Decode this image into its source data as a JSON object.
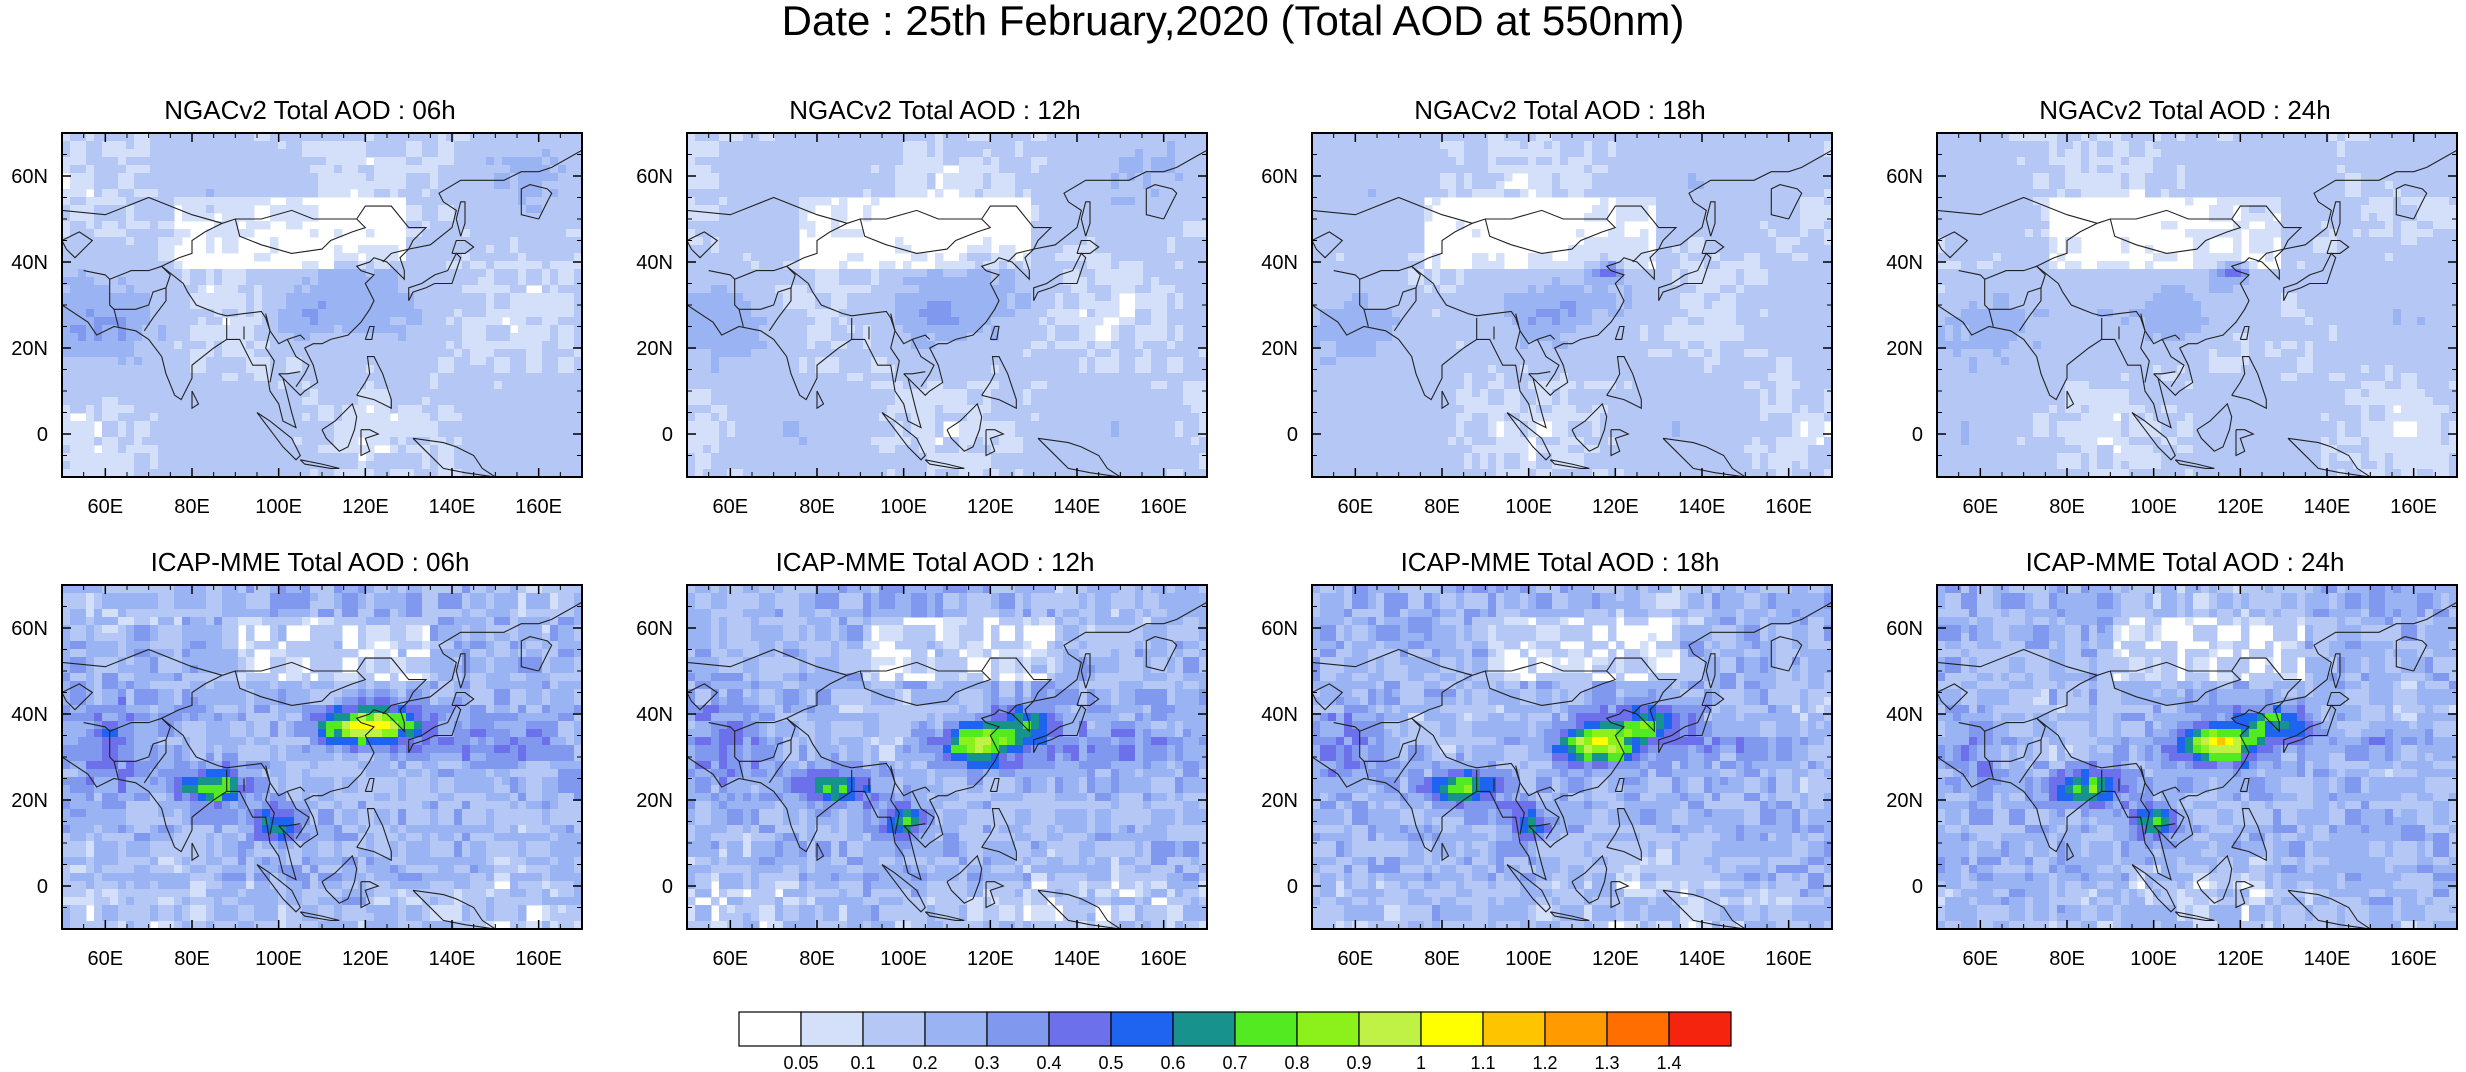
{
  "title": "Date : 25th February,2020 (Total AOD at 550nm)",
  "panels": [
    {
      "title": "NGACv2 Total AOD : 06h",
      "model": "ngac",
      "hour": 6
    },
    {
      "title": "NGACv2 Total AOD : 12h",
      "model": "ngac",
      "hour": 12
    },
    {
      "title": "NGACv2 Total AOD : 18h",
      "model": "ngac",
      "hour": 18
    },
    {
      "title": "NGACv2 Total AOD : 24h",
      "model": "ngac",
      "hour": 24
    },
    {
      "title": "ICAP-MME Total AOD : 06h",
      "model": "icap",
      "hour": 6
    },
    {
      "title": "ICAP-MME Total AOD : 12h",
      "model": "icap",
      "hour": 12
    },
    {
      "title": "ICAP-MME Total AOD : 18h",
      "model": "icap",
      "hour": 18
    },
    {
      "title": "ICAP-MME Total AOD : 24h",
      "model": "icap",
      "hour": 24
    }
  ],
  "map": {
    "lon_range": [
      50,
      170
    ],
    "lat_range": [
      -10,
      70
    ],
    "lon_ticks": [
      "60E",
      "80E",
      "100E",
      "120E",
      "140E",
      "160E"
    ],
    "lon_tick_values": [
      60,
      80,
      100,
      120,
      140,
      160
    ],
    "lat_ticks": [
      "0",
      "20N",
      "40N",
      "60N"
    ],
    "lat_tick_values": [
      0,
      20,
      40,
      60
    ]
  },
  "colorbar": {
    "levels": [
      "0.05",
      "0.1",
      "0.2",
      "0.3",
      "0.4",
      "0.5",
      "0.6",
      "0.7",
      "0.8",
      "0.9",
      "1",
      "1.1",
      "1.2",
      "1.3",
      "1.4"
    ],
    "colors": [
      "#ffffff",
      "#d4e0fa",
      "#b5c8f5",
      "#9ab3f2",
      "#8198ef",
      "#6c70ea",
      "#1e64f0",
      "#17928c",
      "#53ea22",
      "#8cf01a",
      "#bff244",
      "#ffff00",
      "#ffc400",
      "#ff9a00",
      "#ff6e00",
      "#f5240f"
    ]
  }
}
